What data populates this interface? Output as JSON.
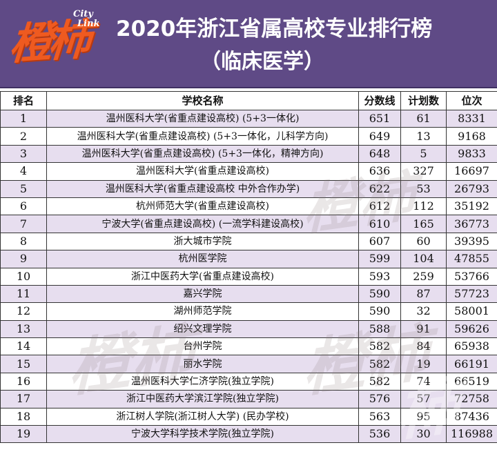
{
  "header": {
    "logo_text": "橙柿",
    "logo_city": "City",
    "logo_link": "Link",
    "title_line1": "2020年浙江省属高校专业排行榜",
    "title_line2": "（临床医学）",
    "background_color": "#5f4a86",
    "logo_color": "#ee5a20"
  },
  "table": {
    "columns": [
      "排名",
      "学校名称",
      "分数线",
      "计划数",
      "位次"
    ],
    "rows": [
      {
        "rank": "1",
        "school": "温州医科大学(省重点建设高校) (5+3一体化)",
        "score": "651",
        "plan": "61",
        "position": "8331"
      },
      {
        "rank": "2",
        "school": "温州医科大学(省重点建设高校) (5+3一体化，儿科学方向)",
        "score": "649",
        "plan": "13",
        "position": "9168"
      },
      {
        "rank": "3",
        "school": "温州医科大学(省重点建设高校) (5+3一体化，精神方向)",
        "score": "648",
        "plan": "5",
        "position": "9833"
      },
      {
        "rank": "4",
        "school": "温州医科大学(省重点建设高校)",
        "score": "636",
        "plan": "327",
        "position": "16697"
      },
      {
        "rank": "5",
        "school": "温州医科大学(省重点建设高校  中外合作办学)",
        "score": "622",
        "plan": "53",
        "position": "26793"
      },
      {
        "rank": "6",
        "school": "杭州师范大学(省重点建设高校)",
        "score": "612",
        "plan": "112",
        "position": "35192"
      },
      {
        "rank": "7",
        "school": "宁波大学(省重点建设高校) (一流学科建设高校)",
        "score": "610",
        "plan": "165",
        "position": "36773"
      },
      {
        "rank": "8",
        "school": "浙大城市学院",
        "score": "607",
        "plan": "60",
        "position": "39395"
      },
      {
        "rank": "9",
        "school": "杭州医学院",
        "score": "599",
        "plan": "104",
        "position": "47855"
      },
      {
        "rank": "10",
        "school": "浙江中医药大学(省重点建设高校)",
        "score": "593",
        "plan": "259",
        "position": "53766"
      },
      {
        "rank": "11",
        "school": "嘉兴学院",
        "score": "590",
        "plan": "87",
        "position": "57723"
      },
      {
        "rank": "12",
        "school": "湖州师范学院",
        "score": "590",
        "plan": "32",
        "position": "58001"
      },
      {
        "rank": "13",
        "school": "绍兴文理学院",
        "score": "588",
        "plan": "91",
        "position": "59626"
      },
      {
        "rank": "14",
        "school": "台州学院",
        "score": "582",
        "plan": "84",
        "position": "65938"
      },
      {
        "rank": "15",
        "school": "丽水学院",
        "score": "582",
        "plan": "19",
        "position": "66191"
      },
      {
        "rank": "16",
        "school": "温州医科大学仁济学院(独立学院)",
        "score": "582",
        "plan": "74",
        "position": "66519"
      },
      {
        "rank": "17",
        "school": "浙江中医药大学滨江学院(独立学院)",
        "score": "576",
        "plan": "57",
        "position": "72758"
      },
      {
        "rank": "18",
        "school": "浙江树人学院(浙江树人大学) (民办学校)",
        "score": "563",
        "plan": "95",
        "position": "87436"
      },
      {
        "rank": "19",
        "school": "宁波大学科学技术学院(独立学院)",
        "score": "536",
        "plan": "30",
        "position": "116988"
      }
    ],
    "odd_row_color": "#e7deef",
    "even_row_color": "#ffffff"
  }
}
